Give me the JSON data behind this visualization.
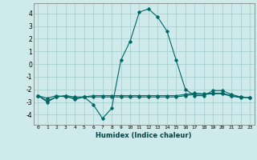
{
  "xlabel": "Humidex (Indice chaleur)",
  "ylabel": "",
  "background_color": "#ceeaea",
  "grid_color": "#afd4d4",
  "line_color": "#006666",
  "xlim": [
    -0.5,
    23.5
  ],
  "ylim": [
    -4.8,
    4.8
  ],
  "yticks": [
    -4,
    -3,
    -2,
    -1,
    0,
    1,
    2,
    3,
    4
  ],
  "xticks": [
    0,
    1,
    2,
    3,
    4,
    5,
    6,
    7,
    8,
    9,
    10,
    11,
    12,
    13,
    14,
    15,
    16,
    17,
    18,
    19,
    20,
    21,
    22,
    23
  ],
  "series": [
    [
      0,
      -2.5
    ],
    [
      1,
      -3.0
    ],
    [
      2,
      -2.6
    ],
    [
      3,
      -2.5
    ],
    [
      4,
      -2.8
    ],
    [
      5,
      -2.6
    ],
    [
      6,
      -3.2
    ],
    [
      7,
      -4.3
    ],
    [
      8,
      -3.5
    ],
    [
      9,
      0.3
    ],
    [
      10,
      1.8
    ],
    [
      11,
      4.1
    ],
    [
      12,
      4.35
    ],
    [
      13,
      3.7
    ],
    [
      14,
      2.6
    ],
    [
      15,
      0.3
    ],
    [
      16,
      -2.0
    ],
    [
      17,
      -2.5
    ],
    [
      18,
      -2.5
    ],
    [
      19,
      -2.1
    ],
    [
      20,
      -2.1
    ],
    [
      21,
      -2.4
    ],
    [
      22,
      -2.6
    ],
    [
      23,
      -2.65
    ]
  ],
  "series2": [
    [
      0,
      -2.5
    ],
    [
      1,
      -2.9
    ],
    [
      2,
      -2.6
    ],
    [
      3,
      -2.5
    ],
    [
      4,
      -2.6
    ],
    [
      5,
      -2.6
    ],
    [
      6,
      -2.5
    ],
    [
      7,
      -2.5
    ],
    [
      8,
      -2.5
    ],
    [
      9,
      -2.5
    ],
    [
      10,
      -2.5
    ],
    [
      11,
      -2.5
    ],
    [
      12,
      -2.5
    ],
    [
      13,
      -2.5
    ],
    [
      14,
      -2.5
    ],
    [
      15,
      -2.5
    ],
    [
      16,
      -2.4
    ],
    [
      17,
      -2.3
    ],
    [
      18,
      -2.35
    ],
    [
      19,
      -2.3
    ],
    [
      20,
      -2.3
    ],
    [
      21,
      -2.5
    ],
    [
      22,
      -2.6
    ],
    [
      23,
      -2.65
    ]
  ],
  "series3": [
    [
      0,
      -2.5
    ],
    [
      1,
      -2.7
    ],
    [
      2,
      -2.5
    ],
    [
      3,
      -2.6
    ],
    [
      4,
      -2.7
    ],
    [
      5,
      -2.6
    ],
    [
      6,
      -2.6
    ],
    [
      7,
      -2.6
    ],
    [
      8,
      -2.6
    ],
    [
      9,
      -2.6
    ],
    [
      10,
      -2.6
    ],
    [
      11,
      -2.6
    ],
    [
      12,
      -2.6
    ],
    [
      13,
      -2.6
    ],
    [
      14,
      -2.6
    ],
    [
      15,
      -2.6
    ],
    [
      16,
      -2.5
    ],
    [
      17,
      -2.4
    ],
    [
      18,
      -2.4
    ],
    [
      19,
      -2.35
    ],
    [
      20,
      -2.35
    ],
    [
      21,
      -2.55
    ],
    [
      22,
      -2.65
    ],
    [
      23,
      -2.65
    ]
  ]
}
